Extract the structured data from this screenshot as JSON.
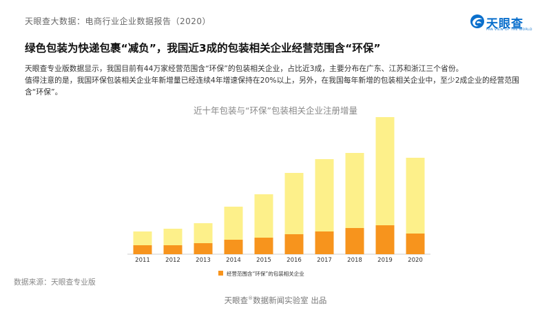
{
  "header": {
    "report_title": "天眼查大数据：电商行业企业数据报告（2020）",
    "logo_name": "天眼查",
    "logo_tagline": "PAN VIEW OF THE WORLD"
  },
  "headline": "绿色包装为快递包裹“减负”，我国近3成的包装相关企业经营范围含“环保”",
  "description": [
    "天眼查专业版数据显示，我国目前有44万家经营范围含“环保”的包装相关企业，占比近3成，主要分布在广东、江苏和浙江三个省份。",
    "值得注意的是，我国环保包装相关企业年新增量已经连续4年增速保持在20%以上，另外，在我国每年新增的包装相关企业中，至少2成企业的经营范围含“环保”。"
  ],
  "chart_data": {
    "type": "bar",
    "stacked": true,
    "title": "近十年包装与“环保”包装相关企业注册增量",
    "categories": [
      "2011",
      "2012",
      "2013",
      "2014",
      "2015",
      "2016",
      "2017",
      "2018",
      "2019",
      "2020"
    ],
    "series": [
      {
        "name": "经营范围含“环保”的包装相关企业",
        "color": "#f7941d",
        "values": [
          13,
          13,
          16,
          21,
          24,
          29,
          33,
          38,
          42,
          30
        ]
      },
      {
        "name": "",
        "color": "#fdf08a",
        "values": [
          20,
          24,
          29,
          48,
          63,
          89,
          105,
          109,
          157,
          110
        ]
      }
    ],
    "legend_position": "bottom",
    "y_axis_visible": false,
    "grid": false
  },
  "source": "数据来源：天眼查专业版",
  "footer": {
    "prefix": "天眼查",
    "mark": "®",
    "suffix": "数据新闻实验室 出品"
  }
}
